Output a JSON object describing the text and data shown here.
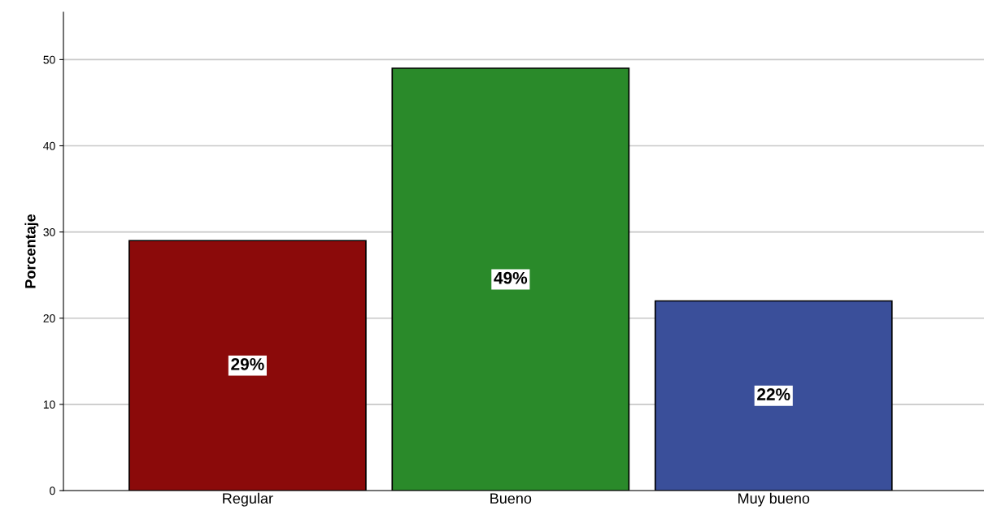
{
  "chart_data": {
    "type": "bar",
    "ylabel": "Porcentaje",
    "categories": [
      "Regular",
      "Bueno",
      "Muy bueno"
    ],
    "values": [
      29,
      49,
      22
    ],
    "colors": [
      "#8b0a0a",
      "#2a8a2a",
      "#3a4f9a"
    ],
    "value_labels": [
      "29%",
      "49%",
      "22%"
    ],
    "ylim": [
      0,
      55.5
    ],
    "yticks": [
      0,
      10,
      20,
      30,
      40,
      50
    ],
    "grid": "y"
  }
}
